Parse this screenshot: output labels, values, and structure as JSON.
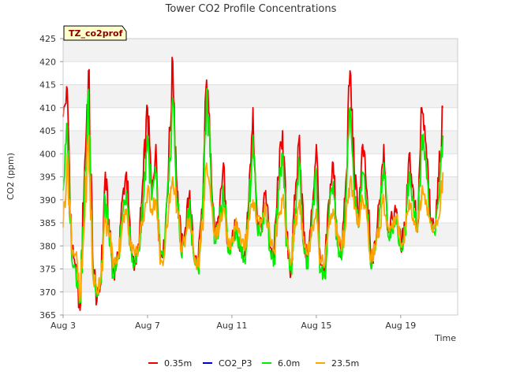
{
  "chart_data": {
    "type": "line",
    "title": "Tower CO2 Profile Concentrations",
    "site_label": "TZ_co2prof",
    "xlabel": "Time",
    "ylabel": "CO2 (ppm)",
    "ylim": [
      365,
      425
    ],
    "y_ticks": [
      365,
      370,
      375,
      380,
      385,
      390,
      395,
      400,
      405,
      410,
      415,
      420,
      425
    ],
    "xlim": [
      3,
      21.7
    ],
    "x_ticks": [
      {
        "value": 3,
        "label": "Aug 3"
      },
      {
        "value": 7,
        "label": "Aug 7"
      },
      {
        "value": 11,
        "label": "Aug 11"
      },
      {
        "value": 15,
        "label": "Aug 15"
      },
      {
        "value": 19,
        "label": "Aug 19"
      }
    ],
    "legend_position": "bottom",
    "series": [
      {
        "name": "0.35m",
        "color": "#ee0000",
        "x": [
          3.0,
          3.2,
          3.4,
          3.6,
          3.8,
          4.0,
          4.2,
          4.4,
          4.6,
          4.8,
          5.0,
          5.2,
          5.4,
          5.6,
          5.8,
          6.0,
          6.2,
          6.4,
          6.6,
          6.8,
          7.0,
          7.2,
          7.4,
          7.6,
          7.8,
          8.0,
          8.2,
          8.4,
          8.6,
          8.8,
          9.0,
          9.2,
          9.4,
          9.6,
          9.8,
          10.0,
          10.2,
          10.4,
          10.6,
          10.8,
          11.0,
          11.2,
          11.4,
          11.6,
          11.8,
          12.0,
          12.2,
          12.4,
          12.6,
          12.8,
          13.0,
          13.2,
          13.4,
          13.6,
          13.8,
          14.0,
          14.2,
          14.4,
          14.6,
          14.8,
          15.0,
          15.2,
          15.4,
          15.6,
          15.8,
          16.0,
          16.2,
          16.4,
          16.6,
          16.8,
          17.0,
          17.2,
          17.4,
          17.6,
          17.8,
          18.0,
          18.2,
          18.4,
          18.6,
          18.8,
          19.0,
          19.2,
          19.4,
          19.6,
          19.8,
          20.0,
          20.2,
          20.4,
          20.6,
          20.8,
          21.0
        ],
        "values": [
          408,
          414,
          380,
          376,
          366,
          394,
          418,
          378,
          368,
          372,
          396,
          382,
          374,
          378,
          390,
          396,
          380,
          376,
          380,
          395,
          410,
          392,
          402,
          378,
          380,
          398,
          420,
          392,
          380,
          384,
          392,
          378,
          376,
          388,
          416,
          400,
          382,
          386,
          398,
          380,
          381,
          385,
          380,
          378,
          390,
          410,
          386,
          384,
          392,
          380,
          378,
          395,
          405,
          382,
          374,
          390,
          404,
          382,
          376,
          388,
          402,
          376,
          373,
          390,
          398,
          382,
          378,
          394,
          418,
          396,
          386,
          402,
          392,
          376,
          380,
          390,
          402,
          384,
          386,
          388,
          380,
          384,
          400,
          392,
          384,
          410,
          402,
          386,
          384,
          394,
          410
        ]
      },
      {
        "name": "CO2_P3",
        "color": "#0000cc",
        "x": [],
        "values": []
      },
      {
        "name": "6.0m",
        "color": "#00ee00",
        "x": [
          3.0,
          3.2,
          3.4,
          3.6,
          3.8,
          4.0,
          4.2,
          4.4,
          4.6,
          4.8,
          5.0,
          5.2,
          5.4,
          5.6,
          5.8,
          6.0,
          6.2,
          6.4,
          6.6,
          6.8,
          7.0,
          7.2,
          7.4,
          7.6,
          7.8,
          8.0,
          8.2,
          8.4,
          8.6,
          8.8,
          9.0,
          9.2,
          9.4,
          9.6,
          9.8,
          10.0,
          10.2,
          10.4,
          10.6,
          10.8,
          11.0,
          11.2,
          11.4,
          11.6,
          11.8,
          12.0,
          12.2,
          12.4,
          12.6,
          12.8,
          13.0,
          13.2,
          13.4,
          13.6,
          13.8,
          14.0,
          14.2,
          14.4,
          14.6,
          14.8,
          15.0,
          15.2,
          15.4,
          15.6,
          15.8,
          16.0,
          16.2,
          16.4,
          16.6,
          16.8,
          17.0,
          17.2,
          17.4,
          17.6,
          17.8,
          18.0,
          18.2,
          18.4,
          18.6,
          18.8,
          19.0,
          19.2,
          19.4,
          19.6,
          19.8,
          20.0,
          20.2,
          20.4,
          20.6,
          20.8,
          21.0
        ],
        "values": [
          392,
          406,
          378,
          375,
          368,
          388,
          414,
          376,
          369,
          372,
          390,
          380,
          373,
          377,
          386,
          392,
          379,
          376,
          379,
          390,
          404,
          390,
          396,
          377,
          379,
          394,
          412,
          390,
          378,
          382,
          390,
          377,
          375,
          386,
          414,
          396,
          381,
          384,
          392,
          379,
          380,
          384,
          379,
          377,
          388,
          404,
          384,
          383,
          389,
          379,
          377,
          392,
          400,
          380,
          375,
          388,
          398,
          380,
          375,
          386,
          396,
          375,
          373,
          387,
          394,
          380,
          377,
          390,
          410,
          392,
          384,
          396,
          390,
          375,
          379,
          388,
          398,
          382,
          384,
          386,
          379,
          383,
          396,
          390,
          383,
          404,
          398,
          385,
          383,
          390,
          404
        ]
      },
      {
        "name": "23.5m",
        "color": "#ffa500",
        "x": [
          3.0,
          3.2,
          3.4,
          3.6,
          3.8,
          4.0,
          4.2,
          4.4,
          4.6,
          4.8,
          5.0,
          5.2,
          5.4,
          5.6,
          5.8,
          6.0,
          6.2,
          6.4,
          6.6,
          6.8,
          7.0,
          7.2,
          7.4,
          7.6,
          7.8,
          8.0,
          8.2,
          8.4,
          8.6,
          8.8,
          9.0,
          9.2,
          9.4,
          9.6,
          9.8,
          10.0,
          10.2,
          10.4,
          10.6,
          10.8,
          11.0,
          11.2,
          11.4,
          11.6,
          11.8,
          12.0,
          12.2,
          12.4,
          12.6,
          12.8,
          13.0,
          13.2,
          13.4,
          13.6,
          13.8,
          14.0,
          14.2,
          14.4,
          14.6,
          14.8,
          15.0,
          15.2,
          15.4,
          15.6,
          15.8,
          16.0,
          16.2,
          16.4,
          16.6,
          16.8,
          17.0,
          17.2,
          17.4,
          17.6,
          17.8,
          18.0,
          18.2,
          18.4,
          18.6,
          18.8,
          19.0,
          19.2,
          19.4,
          19.6,
          19.8,
          20.0,
          20.2,
          20.4,
          20.6,
          20.8,
          21.0
        ],
        "values": [
          384,
          400,
          380,
          378,
          368,
          384,
          404,
          374,
          370,
          374,
          385,
          382,
          376,
          378,
          384,
          388,
          381,
          378,
          380,
          386,
          392,
          388,
          390,
          376,
          378,
          388,
          395,
          388,
          379,
          382,
          386,
          378,
          376,
          384,
          398,
          390,
          382,
          384,
          388,
          380,
          381,
          386,
          382,
          379,
          386,
          390,
          386,
          385,
          388,
          382,
          379,
          386,
          390,
          382,
          377,
          384,
          390,
          382,
          378,
          384,
          388,
          377,
          376,
          384,
          388,
          382,
          379,
          385,
          394,
          388,
          385,
          390,
          386,
          377,
          380,
          384,
          390,
          384,
          385,
          386,
          380,
          383,
          390,
          386,
          384,
          392,
          390,
          385,
          384,
          386,
          396
        ]
      }
    ]
  }
}
